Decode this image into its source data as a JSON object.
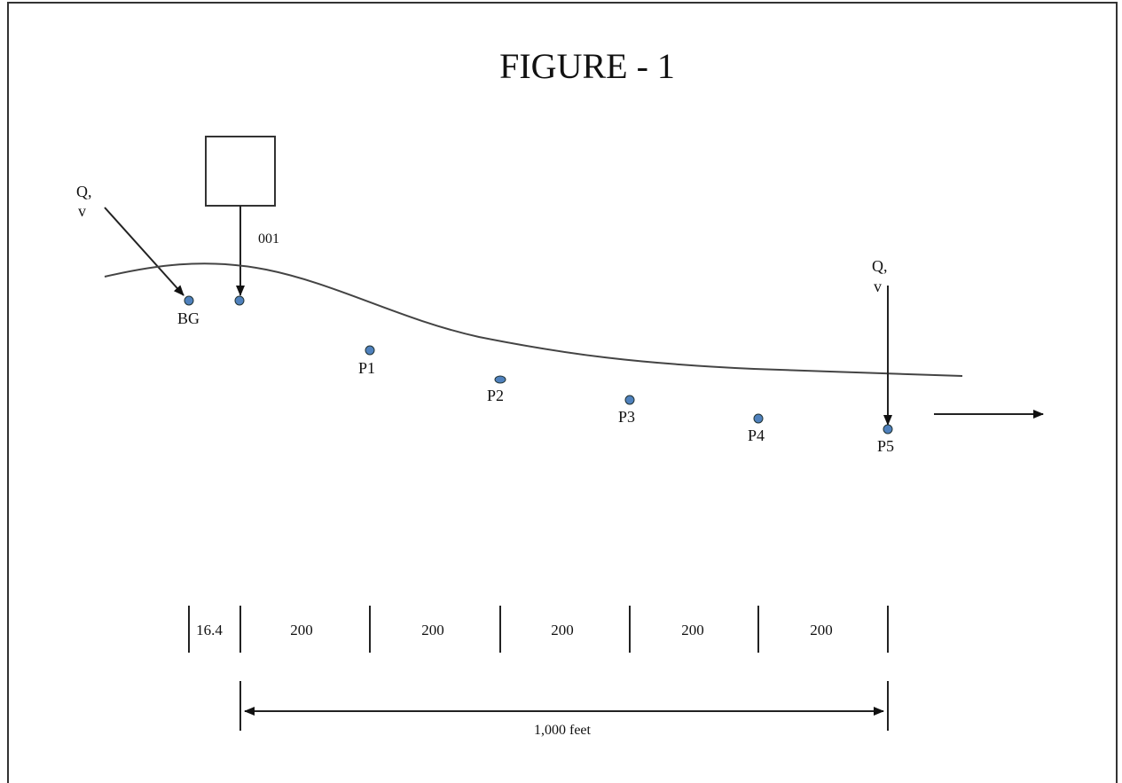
{
  "title": "FIGURE - 1",
  "upstream_flow_label": {
    "line1": "Q,",
    "line2": "v"
  },
  "downstream_flow_label": {
    "line1": "Q,",
    "line2": "v"
  },
  "outfall_label": "001",
  "points": {
    "bg": "BG",
    "p1": "P1",
    "p2": "P2",
    "p3": "P3",
    "p4": "P4",
    "p5": "P5"
  },
  "segments": [
    "16.4",
    "200",
    "200",
    "200",
    "200",
    "200"
  ],
  "total_length": "1,000 feet",
  "colors": {
    "point_fill": "#4f81bd",
    "line": "#333333"
  }
}
